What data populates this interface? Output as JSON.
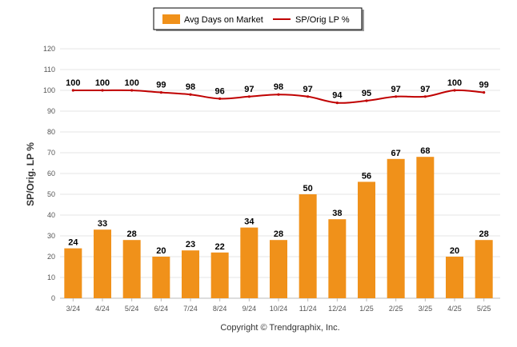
{
  "chart_data": {
    "type": "bar",
    "categories": [
      "3/24",
      "4/24",
      "5/24",
      "6/24",
      "7/24",
      "8/24",
      "9/24",
      "10/24",
      "11/24",
      "12/24",
      "1/25",
      "2/25",
      "3/25",
      "4/25",
      "5/25"
    ],
    "series": [
      {
        "name": "Avg Days on Market",
        "type": "bar",
        "color": "#F0911A",
        "values": [
          24,
          33,
          28,
          20,
          23,
          22,
          34,
          28,
          50,
          38,
          56,
          67,
          68,
          20,
          28
        ]
      },
      {
        "name": "SP/Orig LP %",
        "type": "line",
        "color": "#C00000",
        "values": [
          100,
          100,
          100,
          99,
          98,
          96,
          97,
          98,
          97,
          94,
          95,
          97,
          97,
          100,
          99
        ]
      }
    ],
    "ylabel": "SP/Orig. LP %",
    "ylim": [
      0,
      120
    ],
    "yticks": [
      0,
      10,
      20,
      30,
      40,
      50,
      60,
      70,
      80,
      90,
      100,
      110,
      120
    ],
    "grid": true,
    "legend_position": "top-center"
  },
  "footer": {
    "copyright": "Copyright © Trendgraphix, Inc."
  }
}
